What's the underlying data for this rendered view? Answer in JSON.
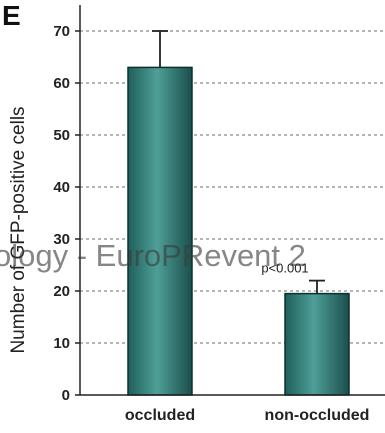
{
  "chart_data": {
    "type": "bar",
    "panel_label": "E",
    "categories": [
      "occluded",
      "non-occluded"
    ],
    "values": [
      63,
      19.5
    ],
    "errors": [
      7,
      2.5
    ],
    "annotations": [
      {
        "category": "non-occluded",
        "text": "p<0.001"
      }
    ],
    "xlabel": "",
    "ylabel": "Number of GFP-positive cells",
    "ylim": [
      0,
      75
    ],
    "yticks": [
      0,
      10,
      20,
      30,
      40,
      50,
      60,
      70
    ],
    "grid": true,
    "bar_color": "#2f7f7a",
    "watermark": "ology - EuroPRevent 2"
  }
}
